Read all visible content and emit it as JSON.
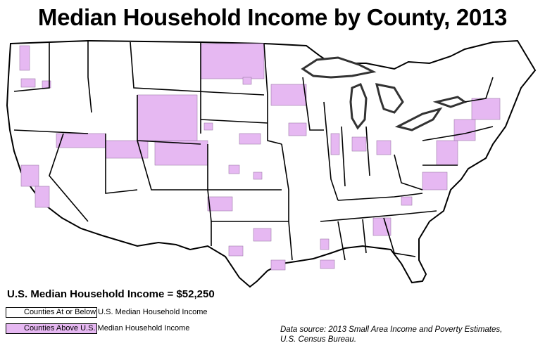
{
  "title": "Median Household Income by County, 2013",
  "legend": {
    "heading": "U.S. Median Household Income = $52,250",
    "items": [
      {
        "label": "Counties At or Below U.S. Median Household Income",
        "color": "#ffffff"
      },
      {
        "label": "Counties Above U.S. Median Household Income",
        "color": "#e6b8f2"
      }
    ]
  },
  "source": {
    "line1": "Data source: 2013 Small Area Income and Poverty Estimates,",
    "line2": "U.S. Census Bureau."
  },
  "colors": {
    "above_median": "#e6b8f2",
    "at_or_below_median": "#ffffff",
    "border": "#000000",
    "lake_outline": "#333333"
  }
}
